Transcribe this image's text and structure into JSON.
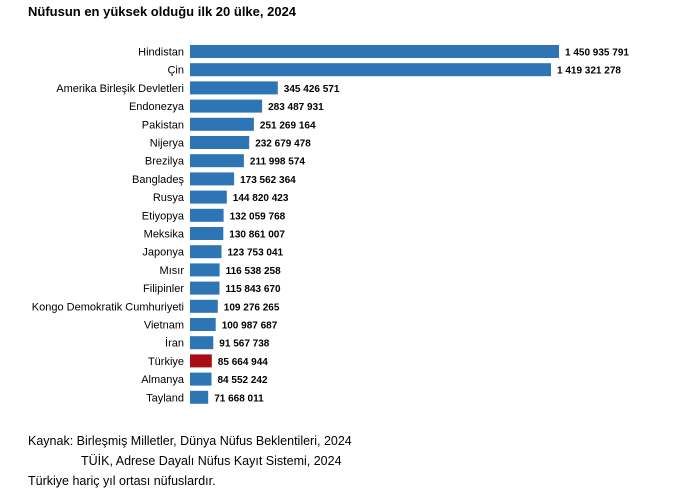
{
  "chart_data": {
    "type": "bar",
    "orientation": "horizontal",
    "title": "Nüfusun en yüksek olduğu ilk 20 ülke, 2024",
    "categories": [
      "Hindistan",
      "Çin",
      "Amerika Birleşik Devletleri",
      "Endonezya",
      "Pakistan",
      "Nijerya",
      "Brezilya",
      "Bangladeş",
      "Rusya",
      "Etiyopya",
      "Meksika",
      "Japonya",
      "Mısır",
      "Filipinler",
      "Kongo Demokratik Cumhuriyeti",
      "Vietnam",
      "İran",
      "Türkiye",
      "Almanya",
      "Tayland"
    ],
    "values": [
      1450935791,
      1419321278,
      345426571,
      283487931,
      251269164,
      232679478,
      211998574,
      173562364,
      144820423,
      132059768,
      130861007,
      123753041,
      116538258,
      115843670,
      109276265,
      100987687,
      91567738,
      85664944,
      84552242,
      71668011
    ],
    "value_labels": [
      "1 450 935 791",
      "1 419 321 278",
      "345 426 571",
      "283 487 931",
      "251 269 164",
      "232 679 478",
      "211 998 574",
      "173 562 364",
      "144 820 423",
      "132 059 768",
      "130 861 007",
      "123 753 041",
      "116 538 258",
      "115 843 670",
      "109 276 265",
      "100 987 687",
      "91 567 738",
      "85 664 944",
      "84 552 242",
      "71 668 011"
    ],
    "highlight_category": "Türkiye",
    "xlabel": "",
    "ylabel": "",
    "xlim": [
      0,
      1450935791
    ],
    "grid": false,
    "legend": "none"
  },
  "colors": {
    "bar": "#2E75B6",
    "highlight": "#A50F15"
  },
  "source": {
    "line1": "Kaynak: Birleşmiş Milletler, Dünya Nüfus Beklentileri, 2024",
    "line2": "TÜİK, Adrese Dayalı Nüfus Kayıt Sistemi, 2024",
    "note": "Türkiye hariç yıl ortası nüfuslardır."
  }
}
